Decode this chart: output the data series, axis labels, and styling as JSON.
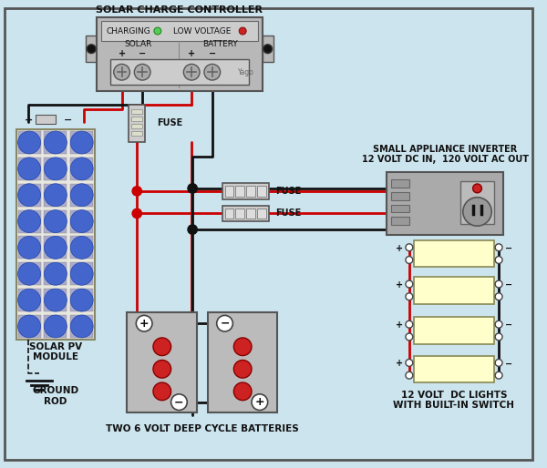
{
  "bg_color": "#cce4ee",
  "wire_red": "#cc0000",
  "wire_black": "#111111",
  "gray_light": "#b8b8b8",
  "gray_med": "#999999",
  "gray_dark": "#777777",
  "panel_bg": "#e8e8e0",
  "cell_blue": "#4466bb",
  "cell_blue2": "#3355aa",
  "battery_gray": "#aaaaaa",
  "light_yellow": "#ffffcc",
  "inv_gray": "#aaaaaa",
  "title_scc": "SOLAR CHARGE CONTROLLER",
  "label_charging": "CHARGING",
  "label_low_voltage": "LOW VOLTAGE",
  "label_solar": "SOLAR",
  "label_battery": "BATTERY",
  "label_fuse": "FUSE",
  "label_solar_pv": "SOLAR PV\nMODULE",
  "label_ground": "GROUND\nROD",
  "label_batteries": "TWO 6 VOLT DEEP CYCLE BATTERIES",
  "label_inverter": "SMALL APPLIANCE INVERTER\n12 VOLT DC IN,  120 VOLT AC OUT",
  "label_lights": "12 VOLT  DC LIGHTS\nWITH BUILT-IN SWITCH"
}
